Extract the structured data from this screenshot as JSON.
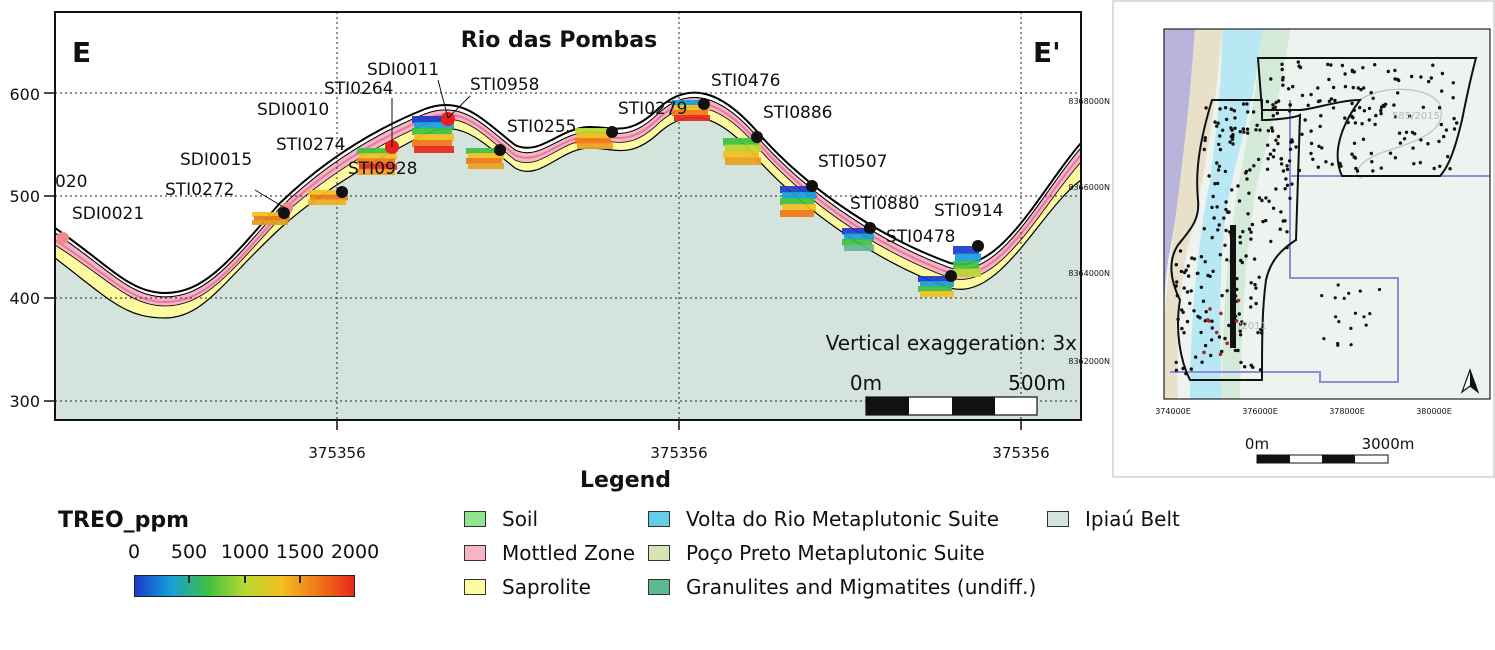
{
  "section": {
    "title": "Rio das Pombas",
    "start_label": "E",
    "end_label": "E'",
    "vertical_exaggeration": "Vertical exaggeration: 3x",
    "scale_start": "0m",
    "scale_end": "500m",
    "y_ticks": [
      "600",
      "500",
      "400",
      "300"
    ],
    "x_ticks": [
      "375356",
      "375356",
      "375356"
    ],
    "drillholes": [
      {
        "id": "020"
      },
      {
        "id": "SDI0021"
      },
      {
        "id": "STI0272"
      },
      {
        "id": "SDI0015"
      },
      {
        "id": "STI0274"
      },
      {
        "id": "SDI0010"
      },
      {
        "id": "STI0264"
      },
      {
        "id": "SDI0011"
      },
      {
        "id": "STI0928"
      },
      {
        "id": "STI0958"
      },
      {
        "id": "STI0255"
      },
      {
        "id": "STI0279"
      },
      {
        "id": "STI0476"
      },
      {
        "id": "STI0886"
      },
      {
        "id": "STI0507"
      },
      {
        "id": "STI0880"
      },
      {
        "id": "STI0478"
      },
      {
        "id": "STI0914"
      }
    ]
  },
  "location_map": {
    "northings": [
      "8368000N",
      "8366000N",
      "8364000N",
      "8362000N"
    ],
    "eastings": [
      "374000E",
      "376000E",
      "378000E",
      "380000E"
    ],
    "faint_labels": [
      "585/2015",
      "/2011"
    ],
    "scale_start": "0m",
    "scale_end": "3000m"
  },
  "legend": {
    "title": "Legend",
    "items": [
      {
        "label": "Soil",
        "color": "#90e690"
      },
      {
        "label": "Mottled Zone",
        "color": "#f6b4c6"
      },
      {
        "label": "Saprolite",
        "color": "#fdfaa0"
      },
      {
        "label": "Volta do Rio Metaplutonic Suite",
        "color": "#66cde8"
      },
      {
        "label": "Poço Preto Metaplutonic Suite",
        "color": "#d7e3b0"
      },
      {
        "label": "Granulites and Migmatites (undiff.)",
        "color": "#5fb88f"
      },
      {
        "label": "Ipiaú Belt",
        "color": "#d4e4dc"
      }
    ]
  },
  "treo": {
    "title": "TREO_ppm",
    "ticks": [
      "0",
      "500",
      "1000",
      "1500",
      "2000"
    ],
    "colors": [
      "#1a3cc8",
      "#16a0d8",
      "#3ec040",
      "#b8d830",
      "#f0c020",
      "#f07818",
      "#e82818"
    ]
  }
}
